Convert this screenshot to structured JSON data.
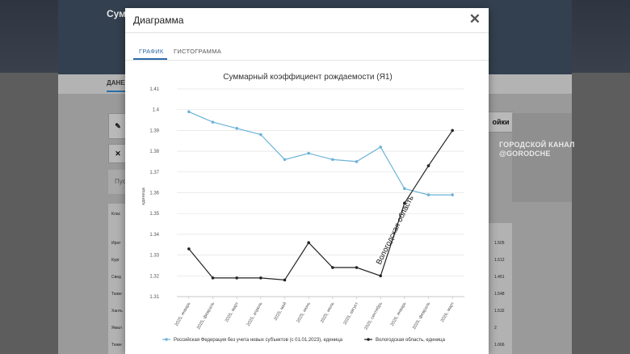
{
  "background": {
    "title": "Сум",
    "tab_label": "ДАНЕ",
    "button_label": "ойки",
    "search_label": "Пус",
    "table_header": "Клас",
    "left_rows": [
      "Ират",
      "Кург",
      "Свед",
      "Тюме",
      "Ханть",
      "Ямал",
      "Тюме"
    ],
    "right_values": [
      "1.505",
      "1.512",
      "1.461",
      "1.548",
      "1.532",
      "2",
      "1.666"
    ]
  },
  "watermark": {
    "line1": "ГОРОДСКОЙ КАНАЛ",
    "line2": "@GORODCHE"
  },
  "modal": {
    "title": "Диаграмма",
    "tabs": [
      {
        "label": "ГРАФИК",
        "active": true
      },
      {
        "label": "ГИСТОГРАММА",
        "active": false
      }
    ]
  },
  "chart_data": {
    "type": "line",
    "title": "Суммарный коэффициент рождаемости (Я1)",
    "ylabel": "единица",
    "xlabel": "",
    "ylim": [
      1.31,
      1.41
    ],
    "yticks": [
      "1.31",
      "1.32",
      "1.33",
      "1.34",
      "1.35",
      "1.36",
      "1.37",
      "1.38",
      "1.39",
      "1.4",
      "1.41"
    ],
    "categories": [
      "2025, январь",
      "2025, февраль",
      "2025, март",
      "2025, апрель",
      "2025, май",
      "2025, июнь",
      "2025, июль",
      "2025, август",
      "2025, сентябрь",
      "2026, январь",
      "2026, февраль",
      "2026, март"
    ],
    "series": [
      {
        "name": "Российская Федерация без учета новых субъектов (с 01.01.2023), единица",
        "color": "#6db3d8",
        "values": [
          1.399,
          1.394,
          1.391,
          1.388,
          1.376,
          1.379,
          1.376,
          1.375,
          1.382,
          1.362,
          1.359,
          1.359
        ]
      },
      {
        "name": "Вологодская область, единица",
        "color": "#222222",
        "values": [
          1.333,
          1.319,
          1.319,
          1.319,
          1.318,
          1.336,
          1.324,
          1.324,
          1.32,
          1.355,
          1.373,
          1.39
        ]
      }
    ],
    "annotation": "Вологодская область",
    "legend_position": "bottom",
    "grid": "horizontal"
  }
}
